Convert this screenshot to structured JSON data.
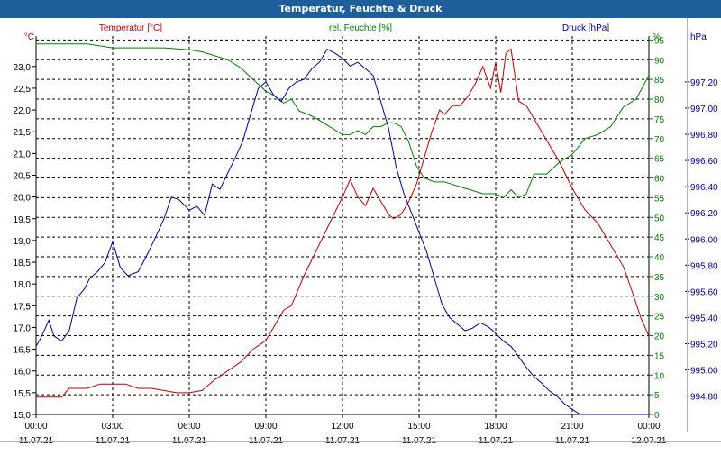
{
  "window": {
    "title": "Temperatur, Feuchte & Druck"
  },
  "colors": {
    "temperature": "#c00000",
    "humidity": "#008000",
    "pressure": "#0000a0",
    "grid": "#000000",
    "axis": "#000000"
  },
  "chart_data": {
    "type": "line",
    "title": "Temperatur, Feuchte & Druck",
    "legend": "top, as axis headers",
    "grid": true,
    "x_ticks": [
      {
        "time": "00:00",
        "date": "11.07.21"
      },
      {
        "time": "03:00",
        "date": "11.07.21"
      },
      {
        "time": "06:00",
        "date": "11.07.21"
      },
      {
        "time": "09:00",
        "date": "11.07.21"
      },
      {
        "time": "12:00",
        "date": "11.07.21"
      },
      {
        "time": "15:00",
        "date": "11.07.21"
      },
      {
        "time": "18:00",
        "date": "11.07.21"
      },
      {
        "time": "21:00",
        "date": "11.07.21"
      },
      {
        "time": "00:00",
        "date": "12.07.21"
      }
    ],
    "x_range_hours": [
      0,
      24
    ],
    "axes": {
      "temperature": {
        "header": "Temperatur [°C]",
        "unit": "°C",
        "range": [
          15.0,
          23.7
        ],
        "ticks": [
          "15,0",
          "15,5",
          "16,0",
          "16,5",
          "17,0",
          "17,5",
          "18,0",
          "18,5",
          "19,0",
          "19,5",
          "20,0",
          "20,5",
          "21,0",
          "21,5",
          "22,0",
          "22,5",
          "23,0"
        ]
      },
      "humidity": {
        "header": "rel. Feuchte [%]",
        "unit": "%",
        "range": [
          0,
          96
        ],
        "ticks": [
          "0",
          "5",
          "10",
          "15",
          "20",
          "25",
          "30",
          "35",
          "40",
          "45",
          "50",
          "55",
          "60",
          "65",
          "70",
          "75",
          "80",
          "85",
          "90",
          "95"
        ]
      },
      "pressure": {
        "header": "Druck [hPa]",
        "unit": "hPa",
        "range": [
          994.66,
          997.55
        ],
        "ticks": [
          "994,80",
          "995,00",
          "995,20",
          "995,40",
          "995,60",
          "995,80",
          "996,00",
          "996,20",
          "996,40",
          "996,60",
          "996,80",
          "997,00",
          "997,20"
        ]
      }
    },
    "series": [
      {
        "name": "Temperatur [°C]",
        "axis": "temperature",
        "x": [
          0,
          0.5,
          1,
          1.3,
          1.5,
          2,
          2.5,
          3,
          3.5,
          4,
          4.5,
          5,
          5.5,
          6,
          6.5,
          7,
          7.5,
          8,
          8.5,
          9,
          9.3,
          9.7,
          10,
          10.5,
          11,
          11.5,
          12,
          12.3,
          12.6,
          12.9,
          13.2,
          13.5,
          13.8,
          14,
          14.3,
          14.6,
          14.9,
          15.2,
          15.5,
          15.8,
          16,
          16.3,
          16.6,
          16.9,
          17.2,
          17.5,
          17.8,
          18,
          18.2,
          18.4,
          18.6,
          18.9,
          19.2,
          19.5,
          20,
          20.5,
          21,
          21.5,
          22,
          22.5,
          23,
          23.3,
          23.7,
          24
        ],
        "values": [
          15.4,
          15.4,
          15.4,
          15.6,
          15.6,
          15.6,
          15.7,
          15.7,
          15.7,
          15.6,
          15.6,
          15.55,
          15.5,
          15.5,
          15.55,
          15.8,
          16.0,
          16.2,
          16.5,
          16.7,
          17.0,
          17.4,
          17.5,
          18.2,
          18.8,
          19.4,
          20.0,
          20.4,
          20.0,
          19.8,
          20.2,
          19.9,
          19.6,
          19.5,
          19.6,
          19.9,
          20.3,
          20.9,
          21.5,
          22.0,
          21.9,
          22.1,
          22.1,
          22.3,
          22.6,
          23.0,
          22.5,
          23.1,
          22.4,
          23.3,
          23.4,
          22.2,
          22.1,
          21.8,
          21.3,
          20.8,
          20.2,
          19.7,
          19.4,
          18.9,
          18.4,
          17.9,
          17.2,
          16.8
        ]
      },
      {
        "name": "rel. Feuchte [%]",
        "axis": "humidity",
        "x": [
          0,
          1,
          2,
          3,
          4,
          5,
          6,
          6.5,
          7,
          7.5,
          8,
          8.5,
          9,
          9.3,
          9.7,
          10,
          10.3,
          10.7,
          11,
          11.5,
          12,
          12.3,
          12.6,
          12.9,
          13.2,
          13.5,
          13.8,
          14,
          14.3,
          14.6,
          14.9,
          15.2,
          15.6,
          16,
          16.5,
          17,
          17.5,
          18,
          18.3,
          18.6,
          18.9,
          19.2,
          19.5,
          20,
          20.5,
          21,
          21.5,
          22,
          22.5,
          23,
          23.5,
          24
        ],
        "values": [
          94,
          94,
          94,
          93,
          93,
          93,
          92.5,
          92,
          91,
          90,
          88,
          85,
          82,
          81,
          79,
          80,
          77,
          76,
          75,
          73,
          71,
          71,
          72,
          71,
          73,
          73,
          74,
          74,
          73,
          69,
          63,
          60,
          59,
          59,
          58,
          57,
          56,
          56,
          55,
          57,
          55,
          56,
          61,
          61,
          64,
          66,
          70,
          71,
          73,
          78,
          80,
          86
        ]
      },
      {
        "name": "Druck [hPa]",
        "axis": "pressure",
        "x": [
          0,
          0.2,
          0.5,
          0.7,
          1,
          1.3,
          1.6,
          1.9,
          2.1,
          2.4,
          2.7,
          3,
          3.3,
          3.6,
          4,
          4.3,
          4.6,
          5,
          5.3,
          5.6,
          6,
          6.3,
          6.6,
          6.9,
          7.2,
          7.5,
          7.8,
          8.1,
          8.4,
          8.7,
          9,
          9.3,
          9.6,
          9.9,
          10.2,
          10.5,
          10.8,
          11.1,
          11.4,
          11.7,
          12,
          12.3,
          12.6,
          12.9,
          13.2,
          13.5,
          13.8,
          14.1,
          14.4,
          14.7,
          15,
          15.3,
          15.6,
          15.9,
          16.2,
          16.5,
          16.8,
          17.1,
          17.4,
          17.7,
          18,
          18.3,
          18.6,
          18.9,
          19.2,
          19.5,
          19.8,
          20.1,
          20.4,
          20.7,
          21,
          21.3,
          21.6,
          21.9,
          22.2,
          22.5,
          22.8,
          23.1,
          23.4,
          23.7,
          24
        ],
        "values": [
          995.18,
          995.25,
          995.38,
          995.26,
          995.22,
          995.3,
          995.55,
          995.62,
          995.7,
          995.75,
          995.82,
          995.98,
          995.78,
          995.72,
          995.75,
          995.86,
          995.98,
          996.15,
          996.32,
          996.3,
          996.22,
          996.25,
          996.18,
          996.42,
          996.38,
          996.5,
          996.62,
          996.75,
          996.95,
          997.15,
          997.2,
          997.1,
          997.05,
          997.15,
          997.2,
          997.22,
          997.3,
          997.35,
          997.45,
          997.42,
          997.38,
          997.32,
          997.35,
          997.3,
          997.25,
          997.05,
          996.85,
          996.55,
          996.35,
          996.2,
          996.05,
          995.9,
          995.7,
          995.5,
          995.4,
          995.35,
          995.3,
          995.32,
          995.36,
          995.33,
          995.28,
          995.22,
          995.18,
          995.1,
          995.02,
          994.95,
          994.9,
          994.84,
          994.8,
          994.74,
          994.7,
          994.66,
          994.66,
          994.66,
          994.66,
          994.66,
          994.66,
          994.66,
          994.66,
          994.66,
          994.66
        ]
      }
    ]
  }
}
